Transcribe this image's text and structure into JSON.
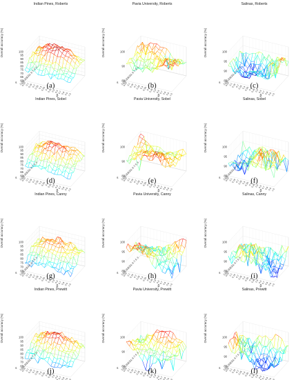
{
  "figure": {
    "z_axis_label": "Overall accuracy (%)",
    "x_axis_label": "s",
    "y_axis_label": "β",
    "s_ticks": [
      "3",
      "5",
      "7",
      "9",
      "11",
      "13",
      "15",
      "17",
      "19",
      "21"
    ],
    "beta_ticks": [
      "0.05",
      "0.1",
      "0.15",
      "0.2",
      "0.25",
      "0.3",
      "0.35",
      "0.4",
      "0.45",
      "0.5",
      "0.6",
      "0.7",
      "0.8",
      "0.9",
      "1.0"
    ]
  },
  "chart_data": [
    {
      "type": "surface",
      "caption": "(a)",
      "title": "Indian Pines, Roberts",
      "zlim": [
        60,
        100
      ],
      "zticks": [
        "60",
        "65",
        "70",
        "75",
        "80",
        "85",
        "90",
        "95",
        "100"
      ],
      "pattern": "dome",
      "base": 78,
      "amp": 22,
      "noise": 4,
      "seed": 1
    },
    {
      "type": "surface",
      "caption": "(b)",
      "title": "Pavia University, Roberts",
      "zlim": [
        80,
        100
      ],
      "zticks": [
        "80",
        "90",
        "100"
      ],
      "pattern": "flat",
      "base": 93,
      "amp": 4,
      "noise": 2.5,
      "seed": 2
    },
    {
      "type": "surface",
      "caption": "(c)",
      "title": "Salinas, Roberts",
      "zlim": [
        85,
        100
      ],
      "zticks": [
        "85",
        "90",
        "95",
        "100"
      ],
      "pattern": "flat",
      "base": 92,
      "amp": 5,
      "noise": 2.5,
      "seed": 3
    },
    {
      "type": "surface",
      "caption": "(d)",
      "title": "Indian Pines, Sobel",
      "zlim": [
        60,
        100
      ],
      "zticks": [
        "60",
        "65",
        "70",
        "75",
        "80",
        "85",
        "90",
        "95",
        "100"
      ],
      "pattern": "dome",
      "base": 78,
      "amp": 20,
      "noise": 4,
      "seed": 4
    },
    {
      "type": "surface",
      "caption": "(e)",
      "title": "Pavia University, Sobel",
      "zlim": [
        80,
        100
      ],
      "zticks": [
        "80",
        "90",
        "100"
      ],
      "pattern": "flat",
      "base": 93,
      "amp": 4,
      "noise": 2.5,
      "seed": 5
    },
    {
      "type": "surface",
      "caption": "(f)",
      "title": "Salinas, Sobel",
      "zlim": [
        85,
        100
      ],
      "zticks": [
        "85",
        "90",
        "95",
        "100"
      ],
      "pattern": "flat",
      "base": 92,
      "amp": 5,
      "noise": 3,
      "seed": 6
    },
    {
      "type": "surface",
      "caption": "(g)",
      "title": "Indian Pines, Canny",
      "zlim": [
        65,
        100
      ],
      "zticks": [
        "65",
        "70",
        "75",
        "80",
        "85",
        "90",
        "95",
        "100"
      ],
      "pattern": "dome",
      "base": 80,
      "amp": 16,
      "noise": 4,
      "seed": 7
    },
    {
      "type": "surface",
      "caption": "(h)",
      "title": "Pavia University, Canny",
      "zlim": [
        85,
        100
      ],
      "zticks": [
        "85",
        "90",
        "95",
        "100"
      ],
      "pattern": "flat",
      "base": 93,
      "amp": 4,
      "noise": 3,
      "seed": 8
    },
    {
      "type": "surface",
      "caption": "(i)",
      "title": "Salinas, Canny",
      "zlim": [
        85,
        100
      ],
      "zticks": [
        "85",
        "90",
        "95",
        "100"
      ],
      "pattern": "flat",
      "base": 91,
      "amp": 4,
      "noise": 3,
      "seed": 9
    },
    {
      "type": "surface",
      "caption": "(j)",
      "title": "Indian Pines, Prewitt",
      "zlim": [
        65,
        100
      ],
      "zticks": [
        "65",
        "70",
        "75",
        "80",
        "85",
        "90",
        "95",
        "100"
      ],
      "pattern": "dome",
      "base": 80,
      "amp": 18,
      "noise": 4,
      "seed": 10
    },
    {
      "type": "surface",
      "caption": "(k)",
      "title": "Pavia University, Prewitt",
      "zlim": [
        80,
        100
      ],
      "zticks": [
        "80",
        "90",
        "100"
      ],
      "pattern": "flat",
      "base": 92,
      "amp": 5,
      "noise": 2.5,
      "seed": 11
    },
    {
      "type": "surface",
      "caption": "(l)",
      "title": "Salinas, Prewitt",
      "zlim": [
        85,
        100
      ],
      "zticks": [
        "85",
        "90",
        "95",
        "100"
      ],
      "pattern": "flat",
      "base": 92,
      "amp": 5,
      "noise": 3,
      "seed": 12
    }
  ]
}
